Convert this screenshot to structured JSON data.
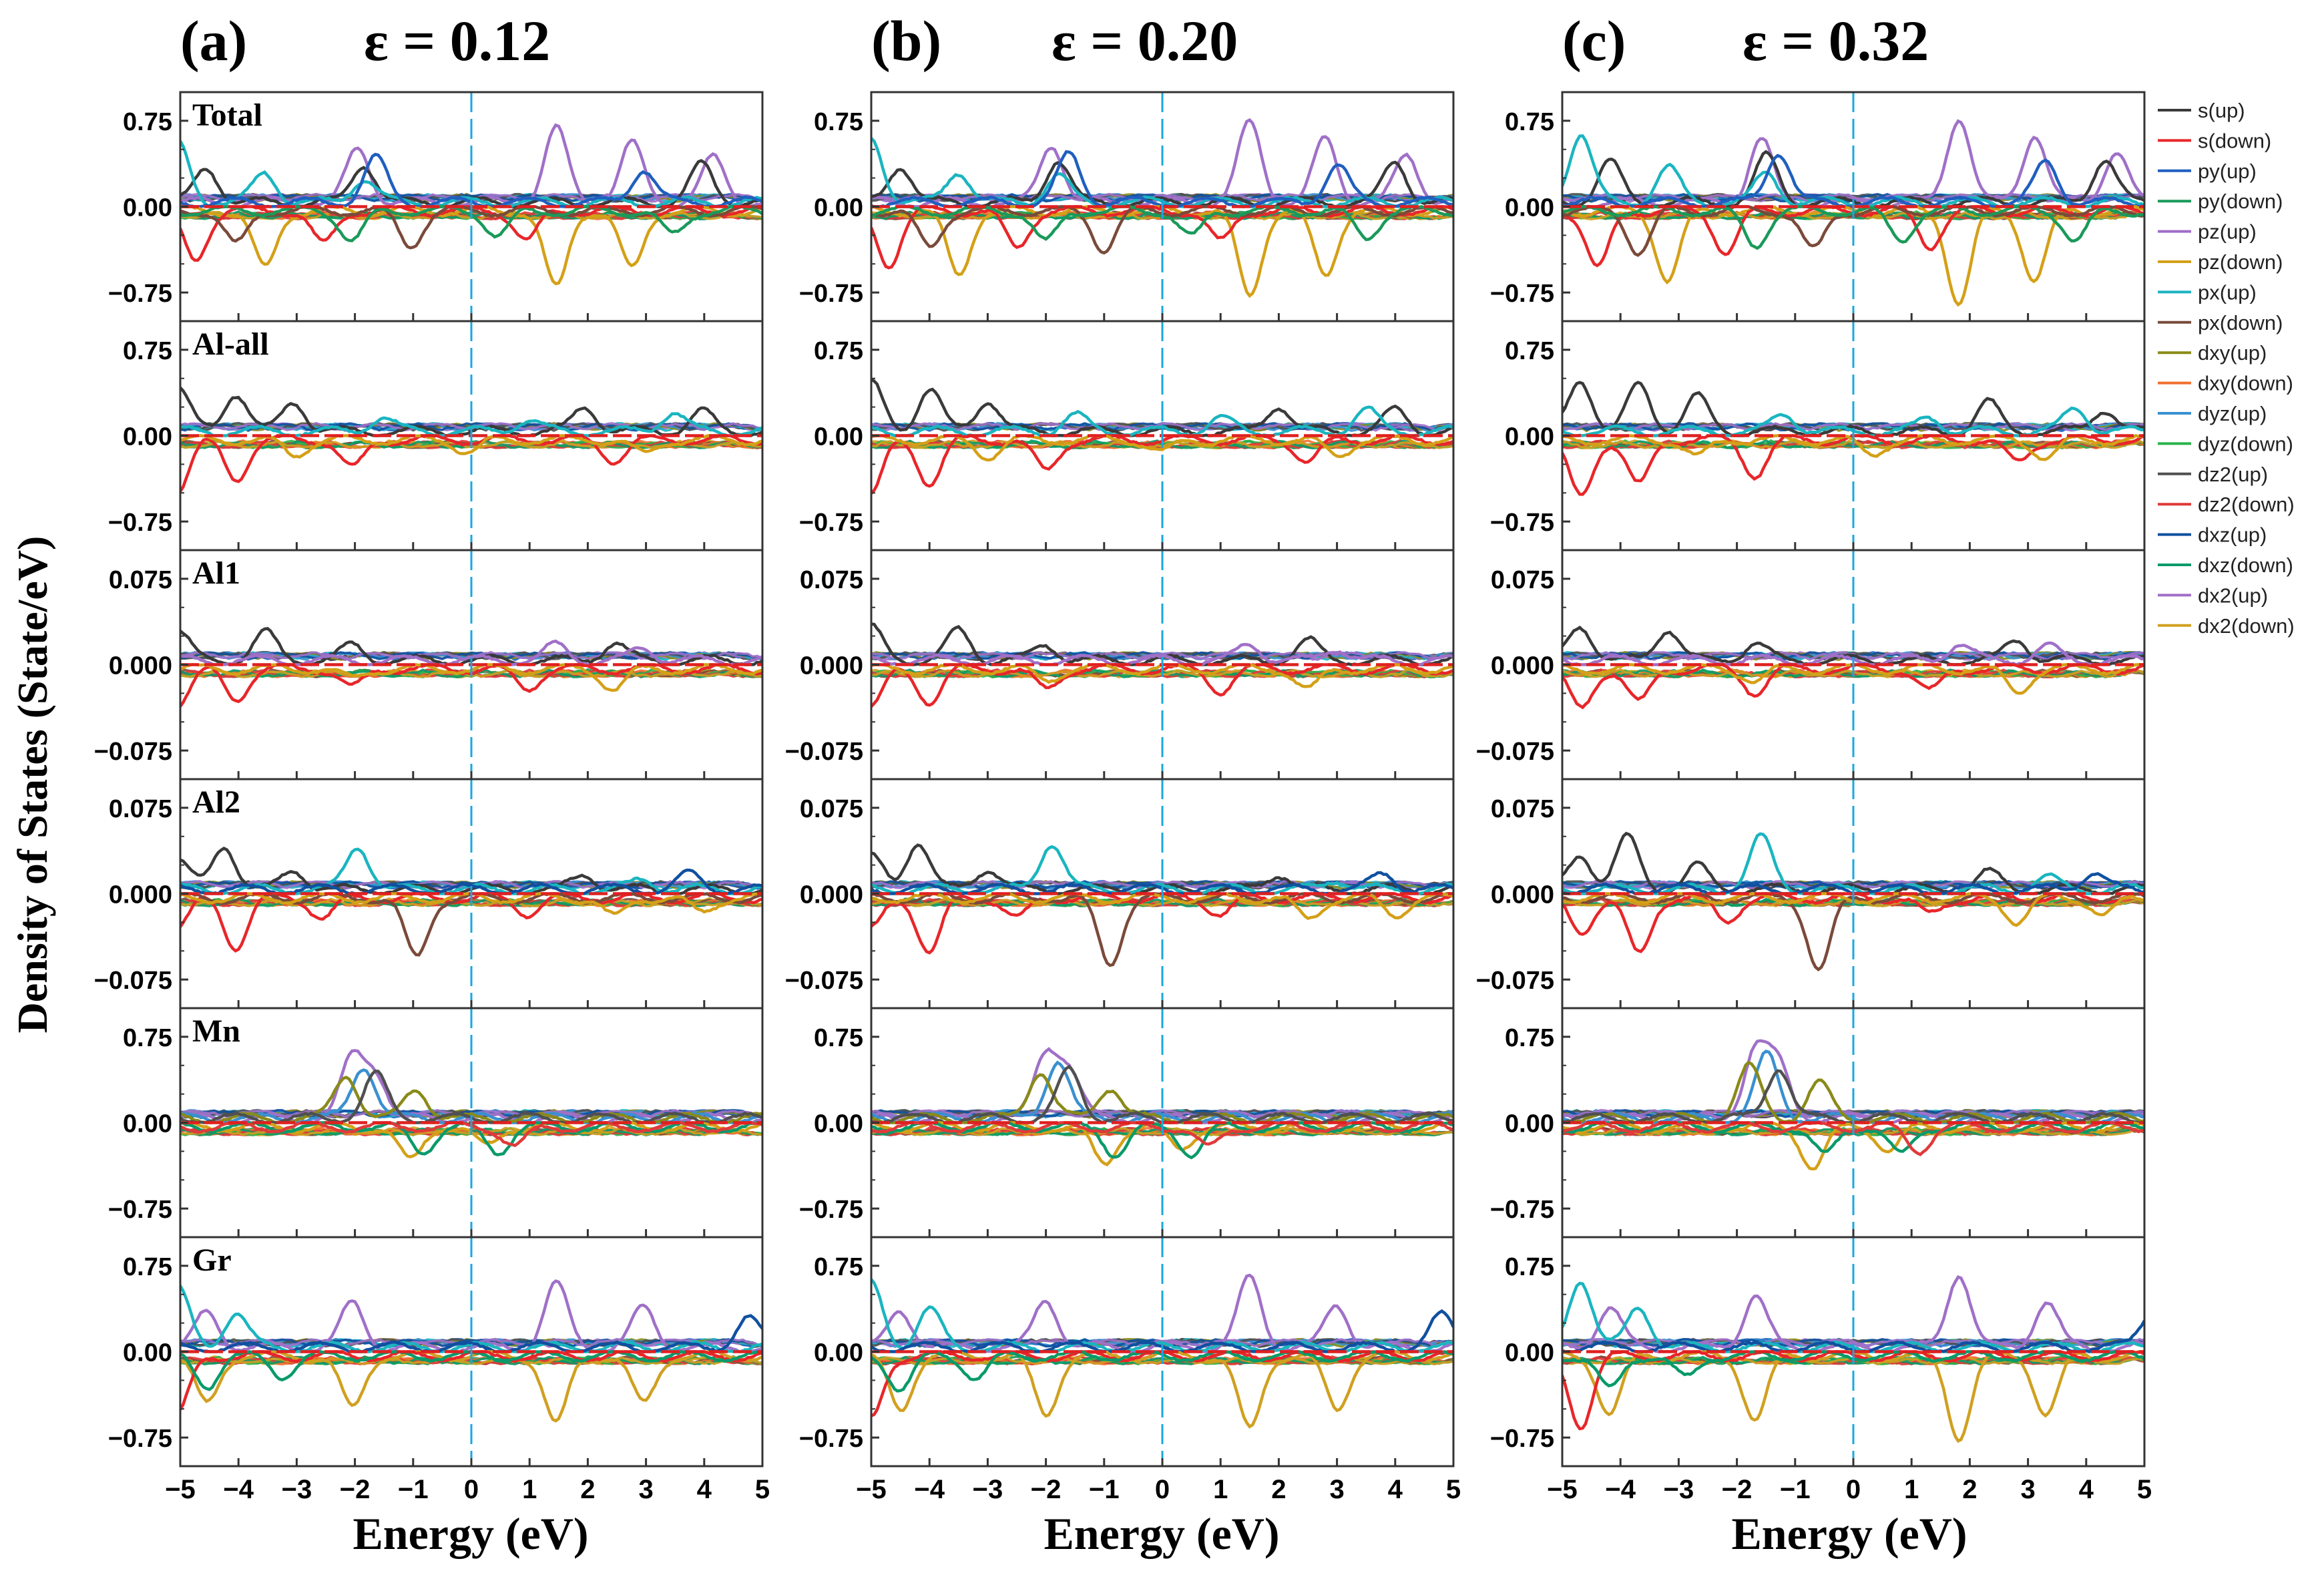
{
  "figure": {
    "ylabel": "Density of States (State/eV)",
    "xlabel": "Energy (eV)"
  },
  "colors": {
    "s(up)": "#3a3a3a",
    "s(down)": "#e8262a",
    "py(up)": "#1f5fbf",
    "py(down)": "#1a9a5a",
    "pz(up)": "#a06cc8",
    "pz(down)": "#d4a017",
    "px(up)": "#1ab5c0",
    "px(down)": "#7a4a3a",
    "dxy(up)": "#8a8a1a",
    "dxy(down)": "#f07030",
    "dyz(up)": "#3a90d0",
    "dyz(down)": "#2ab24a",
    "dz2(up)": "#505050",
    "dz2(down)": "#e03a3a",
    "dxz(up)": "#1050a0",
    "dxz(down)": "#0a9a6a",
    "dx2(up)": "#a070c8",
    "dx2(down)": "#d0a020"
  },
  "legend": {
    "entries": [
      "s(up)",
      "s(down)",
      "py(up)",
      "py(down)",
      "pz(up)",
      "pz(down)",
      "px(up)",
      "px(down)",
      "dxy(up)",
      "dxy(down)",
      "dyz(up)",
      "dyz(down)",
      "dz2(up)",
      "dz2(down)",
      "dxz(up)",
      "dxz(down)",
      "dx2(up)",
      "dx2(down)"
    ]
  },
  "chart_data": {
    "type": "line",
    "x_range": [
      -5,
      5
    ],
    "x_ticks": [
      -5,
      -4,
      -3,
      -2,
      -1,
      0,
      1,
      2,
      3,
      4,
      5
    ],
    "fermi_level": 0,
    "columns": [
      {
        "tag": "(a)",
        "label": "ε = 0.12"
      },
      {
        "tag": "(b)",
        "label": "ε = 0.20"
      },
      {
        "tag": "(c)",
        "label": "ε = 0.32"
      }
    ],
    "rows": [
      {
        "name": "Total",
        "ylim": [
          -1.0,
          1.0
        ],
        "ticks": [
          0.75,
          0.0,
          -0.75
        ],
        "tick_labels": [
          "0.75",
          "0.00",
          "−0.75"
        ]
      },
      {
        "name": "Al-all",
        "ylim": [
          -1.0,
          1.0
        ],
        "ticks": [
          0.75,
          0.0,
          -0.75
        ],
        "tick_labels": [
          "0.75",
          "0.00",
          "−0.75"
        ]
      },
      {
        "name": "Al1",
        "ylim": [
          -0.1,
          0.1
        ],
        "ticks": [
          0.075,
          0.0,
          -0.075
        ],
        "tick_labels": [
          "0.075",
          "0.000",
          "−0.075"
        ]
      },
      {
        "name": "Al2",
        "ylim": [
          -0.1,
          0.1
        ],
        "ticks": [
          0.075,
          0.0,
          -0.075
        ],
        "tick_labels": [
          "0.075",
          "0.000",
          "−0.075"
        ]
      },
      {
        "name": "Mn",
        "ylim": [
          -1.0,
          1.0
        ],
        "ticks": [
          0.75,
          0.0,
          -0.75
        ],
        "tick_labels": [
          "0.75",
          "0.00",
          "−0.75"
        ]
      },
      {
        "name": "Gr",
        "ylim": [
          -1.0,
          1.0
        ],
        "ticks": [
          0.75,
          0.0,
          -0.75
        ],
        "tick_labels": [
          "0.75",
          "0.00",
          "−0.75"
        ]
      }
    ],
    "series_profiles": {
      "note": "approximate values read off the figure; amplitude in DOS units per panel",
      "Total": [
        {
          "name": "dx2(up)",
          "sign": 1,
          "peaks": [
            [
              -1.9,
              0.55
            ],
            [
              1.5,
              0.75
            ],
            [
              2.8,
              0.6
            ],
            [
              4.2,
              0.45
            ]
          ]
        },
        {
          "name": "s(up)",
          "sign": 1,
          "peaks": [
            [
              -4.5,
              0.35
            ],
            [
              -1.8,
              0.4
            ],
            [
              4.0,
              0.38
            ]
          ]
        },
        {
          "name": "px(up)",
          "sign": 1,
          "peaks": [
            [
              -5,
              0.6
            ],
            [
              -3.5,
              0.3
            ],
            [
              -1.8,
              0.25
            ]
          ]
        },
        {
          "name": "py(up)",
          "sign": 1,
          "peaks": [
            [
              -1.6,
              0.45
            ],
            [
              3.0,
              0.35
            ]
          ]
        },
        {
          "name": "pz(down)",
          "sign": -1,
          "peaks": [
            [
              -3.5,
              0.6
            ],
            [
              1.5,
              0.8
            ],
            [
              2.8,
              0.6
            ]
          ]
        },
        {
          "name": "s(down)",
          "sign": -1,
          "peaks": [
            [
              -4.7,
              0.5
            ],
            [
              -2.5,
              0.35
            ],
            [
              1.0,
              0.3
            ]
          ]
        },
        {
          "name": "px(down)",
          "sign": -1,
          "peaks": [
            [
              -4.0,
              0.35
            ],
            [
              -1.0,
              0.35
            ]
          ]
        },
        {
          "name": "py(down)",
          "sign": -1,
          "peaks": [
            [
              -2.0,
              0.3
            ],
            [
              0.5,
              0.25
            ],
            [
              3.5,
              0.25
            ]
          ]
        }
      ],
      "Al-all": [
        {
          "name": "s(up)",
          "sign": 1,
          "peaks": [
            [
              -5,
              0.45
            ],
            [
              -4.0,
              0.4
            ],
            [
              -3,
              0.3
            ],
            [
              2,
              0.25
            ],
            [
              4,
              0.2
            ]
          ]
        },
        {
          "name": "px(up)",
          "sign": 1,
          "peaks": [
            [
              -1.5,
              0.15
            ],
            [
              1.0,
              0.12
            ],
            [
              3.5,
              0.2
            ]
          ]
        },
        {
          "name": "s(down)",
          "sign": -1,
          "peaks": [
            [
              -5,
              0.5
            ],
            [
              -4.0,
              0.4
            ],
            [
              -2,
              0.3
            ],
            [
              2.5,
              0.2
            ]
          ]
        },
        {
          "name": "pz(down)",
          "sign": -1,
          "peaks": [
            [
              -3,
              0.15
            ],
            [
              0,
              0.12
            ],
            [
              3,
              0.15
            ]
          ]
        }
      ],
      "Al1": [
        {
          "name": "s(up)",
          "sign": 1,
          "peaks": [
            [
              -5,
              0.03
            ],
            [
              -3.5,
              0.028
            ],
            [
              -2,
              0.015
            ],
            [
              2.5,
              0.018
            ]
          ]
        },
        {
          "name": "dx2(up)",
          "sign": 1,
          "peaks": [
            [
              1.5,
              0.015
            ],
            [
              3.0,
              0.012
            ]
          ]
        },
        {
          "name": "s(down)",
          "sign": -1,
          "peaks": [
            [
              -5,
              0.035
            ],
            [
              -4,
              0.03
            ],
            [
              -2,
              0.02
            ],
            [
              1,
              0.02
            ]
          ]
        },
        {
          "name": "pz(down)",
          "sign": -1,
          "peaks": [
            [
              -2,
              0.01
            ],
            [
              2.5,
              0.02
            ]
          ]
        }
      ],
      "Al2": [
        {
          "name": "s(up)",
          "sign": 1,
          "peaks": [
            [
              -5,
              0.03
            ],
            [
              -4.2,
              0.045
            ],
            [
              -3,
              0.02
            ],
            [
              2,
              0.015
            ]
          ]
        },
        {
          "name": "px(up)",
          "sign": 1,
          "peaks": [
            [
              -1.9,
              0.045
            ],
            [
              3,
              0.01
            ]
          ]
        },
        {
          "name": "dxz(up)",
          "sign": 1,
          "peaks": [
            [
              3.8,
              0.015
            ]
          ]
        },
        {
          "name": "s(down)",
          "sign": -1,
          "peaks": [
            [
              -5,
              0.03
            ],
            [
              -4,
              0.05
            ],
            [
              -2.5,
              0.02
            ],
            [
              1,
              0.015
            ]
          ]
        },
        {
          "name": "px(down)",
          "sign": -1,
          "peaks": [
            [
              -0.9,
              0.062
            ]
          ]
        },
        {
          "name": "pz(down)",
          "sign": -1,
          "peaks": [
            [
              2.5,
              0.02
            ],
            [
              4,
              0.015
            ]
          ]
        }
      ],
      "Mn": [
        {
          "name": "dx2(up)",
          "sign": 1,
          "peaks": [
            [
              -2.0,
              0.6
            ],
            [
              -1.6,
              0.45
            ]
          ]
        },
        {
          "name": "dyz(up)",
          "sign": 1,
          "peaks": [
            [
              -1.8,
              0.55
            ]
          ]
        },
        {
          "name": "dxy(up)",
          "sign": 1,
          "peaks": [
            [
              -2.1,
              0.45
            ],
            [
              -0.9,
              0.3
            ]
          ]
        },
        {
          "name": "dz2(up)",
          "sign": 1,
          "peaks": [
            [
              -1.6,
              0.45
            ]
          ]
        },
        {
          "name": "pz(down)",
          "sign": -1,
          "peaks": [
            [
              -1.0,
              0.35
            ],
            [
              0.3,
              0.2
            ]
          ]
        },
        {
          "name": "dxz(down)",
          "sign": -1,
          "peaks": [
            [
              -0.8,
              0.25
            ],
            [
              0.5,
              0.25
            ]
          ]
        },
        {
          "name": "dz2(down)",
          "sign": -1,
          "peaks": [
            [
              0.8,
              0.2
            ]
          ]
        }
      ],
      "Gr": [
        {
          "name": "dx2(up)",
          "sign": 1,
          "peaks": [
            [
              -4.5,
              0.35
            ],
            [
              -2.0,
              0.45
            ],
            [
              1.5,
              0.65
            ],
            [
              3.0,
              0.4
            ]
          ]
        },
        {
          "name": "px(up)",
          "sign": 1,
          "peaks": [
            [
              -5,
              0.6
            ],
            [
              -4.0,
              0.35
            ]
          ]
        },
        {
          "name": "dxz(up)",
          "sign": 1,
          "peaks": [
            [
              4.8,
              0.3
            ]
          ]
        },
        {
          "name": "dx2(down)",
          "sign": -1,
          "peaks": [
            [
              -4.5,
              0.5
            ],
            [
              -2,
              0.55
            ],
            [
              1.5,
              0.7
            ],
            [
              3.0,
              0.5
            ]
          ]
        },
        {
          "name": "s(down)",
          "sign": -1,
          "peaks": [
            [
              -5,
              0.6
            ]
          ]
        },
        {
          "name": "dxz(down)",
          "sign": -1,
          "peaks": [
            [
              -4.5,
              0.3
            ],
            [
              -3.2,
              0.2
            ]
          ]
        }
      ]
    }
  }
}
